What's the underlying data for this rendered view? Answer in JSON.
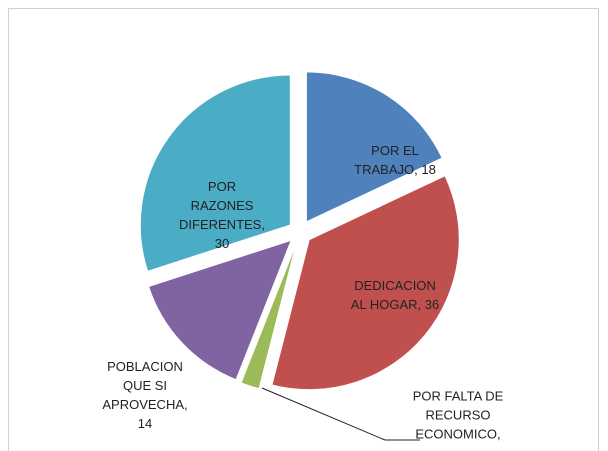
{
  "chart_data": {
    "type": "pie",
    "values": [
      18,
      36,
      2,
      14,
      30
    ],
    "value_labels": [
      "POR EL TRABAJO, 18",
      "DEDICACION AL HOGAR, 36",
      "POR FALTA DE RECURSO ECONOMICO,",
      "POBLACION QUE SI APROVECHA, 14",
      "POR RAZONES DIFERENTES, 30"
    ],
    "colors": [
      "#4f81bd",
      "#c0504d",
      "#9bbb59",
      "#8064a2",
      "#4bacc6"
    ]
  }
}
